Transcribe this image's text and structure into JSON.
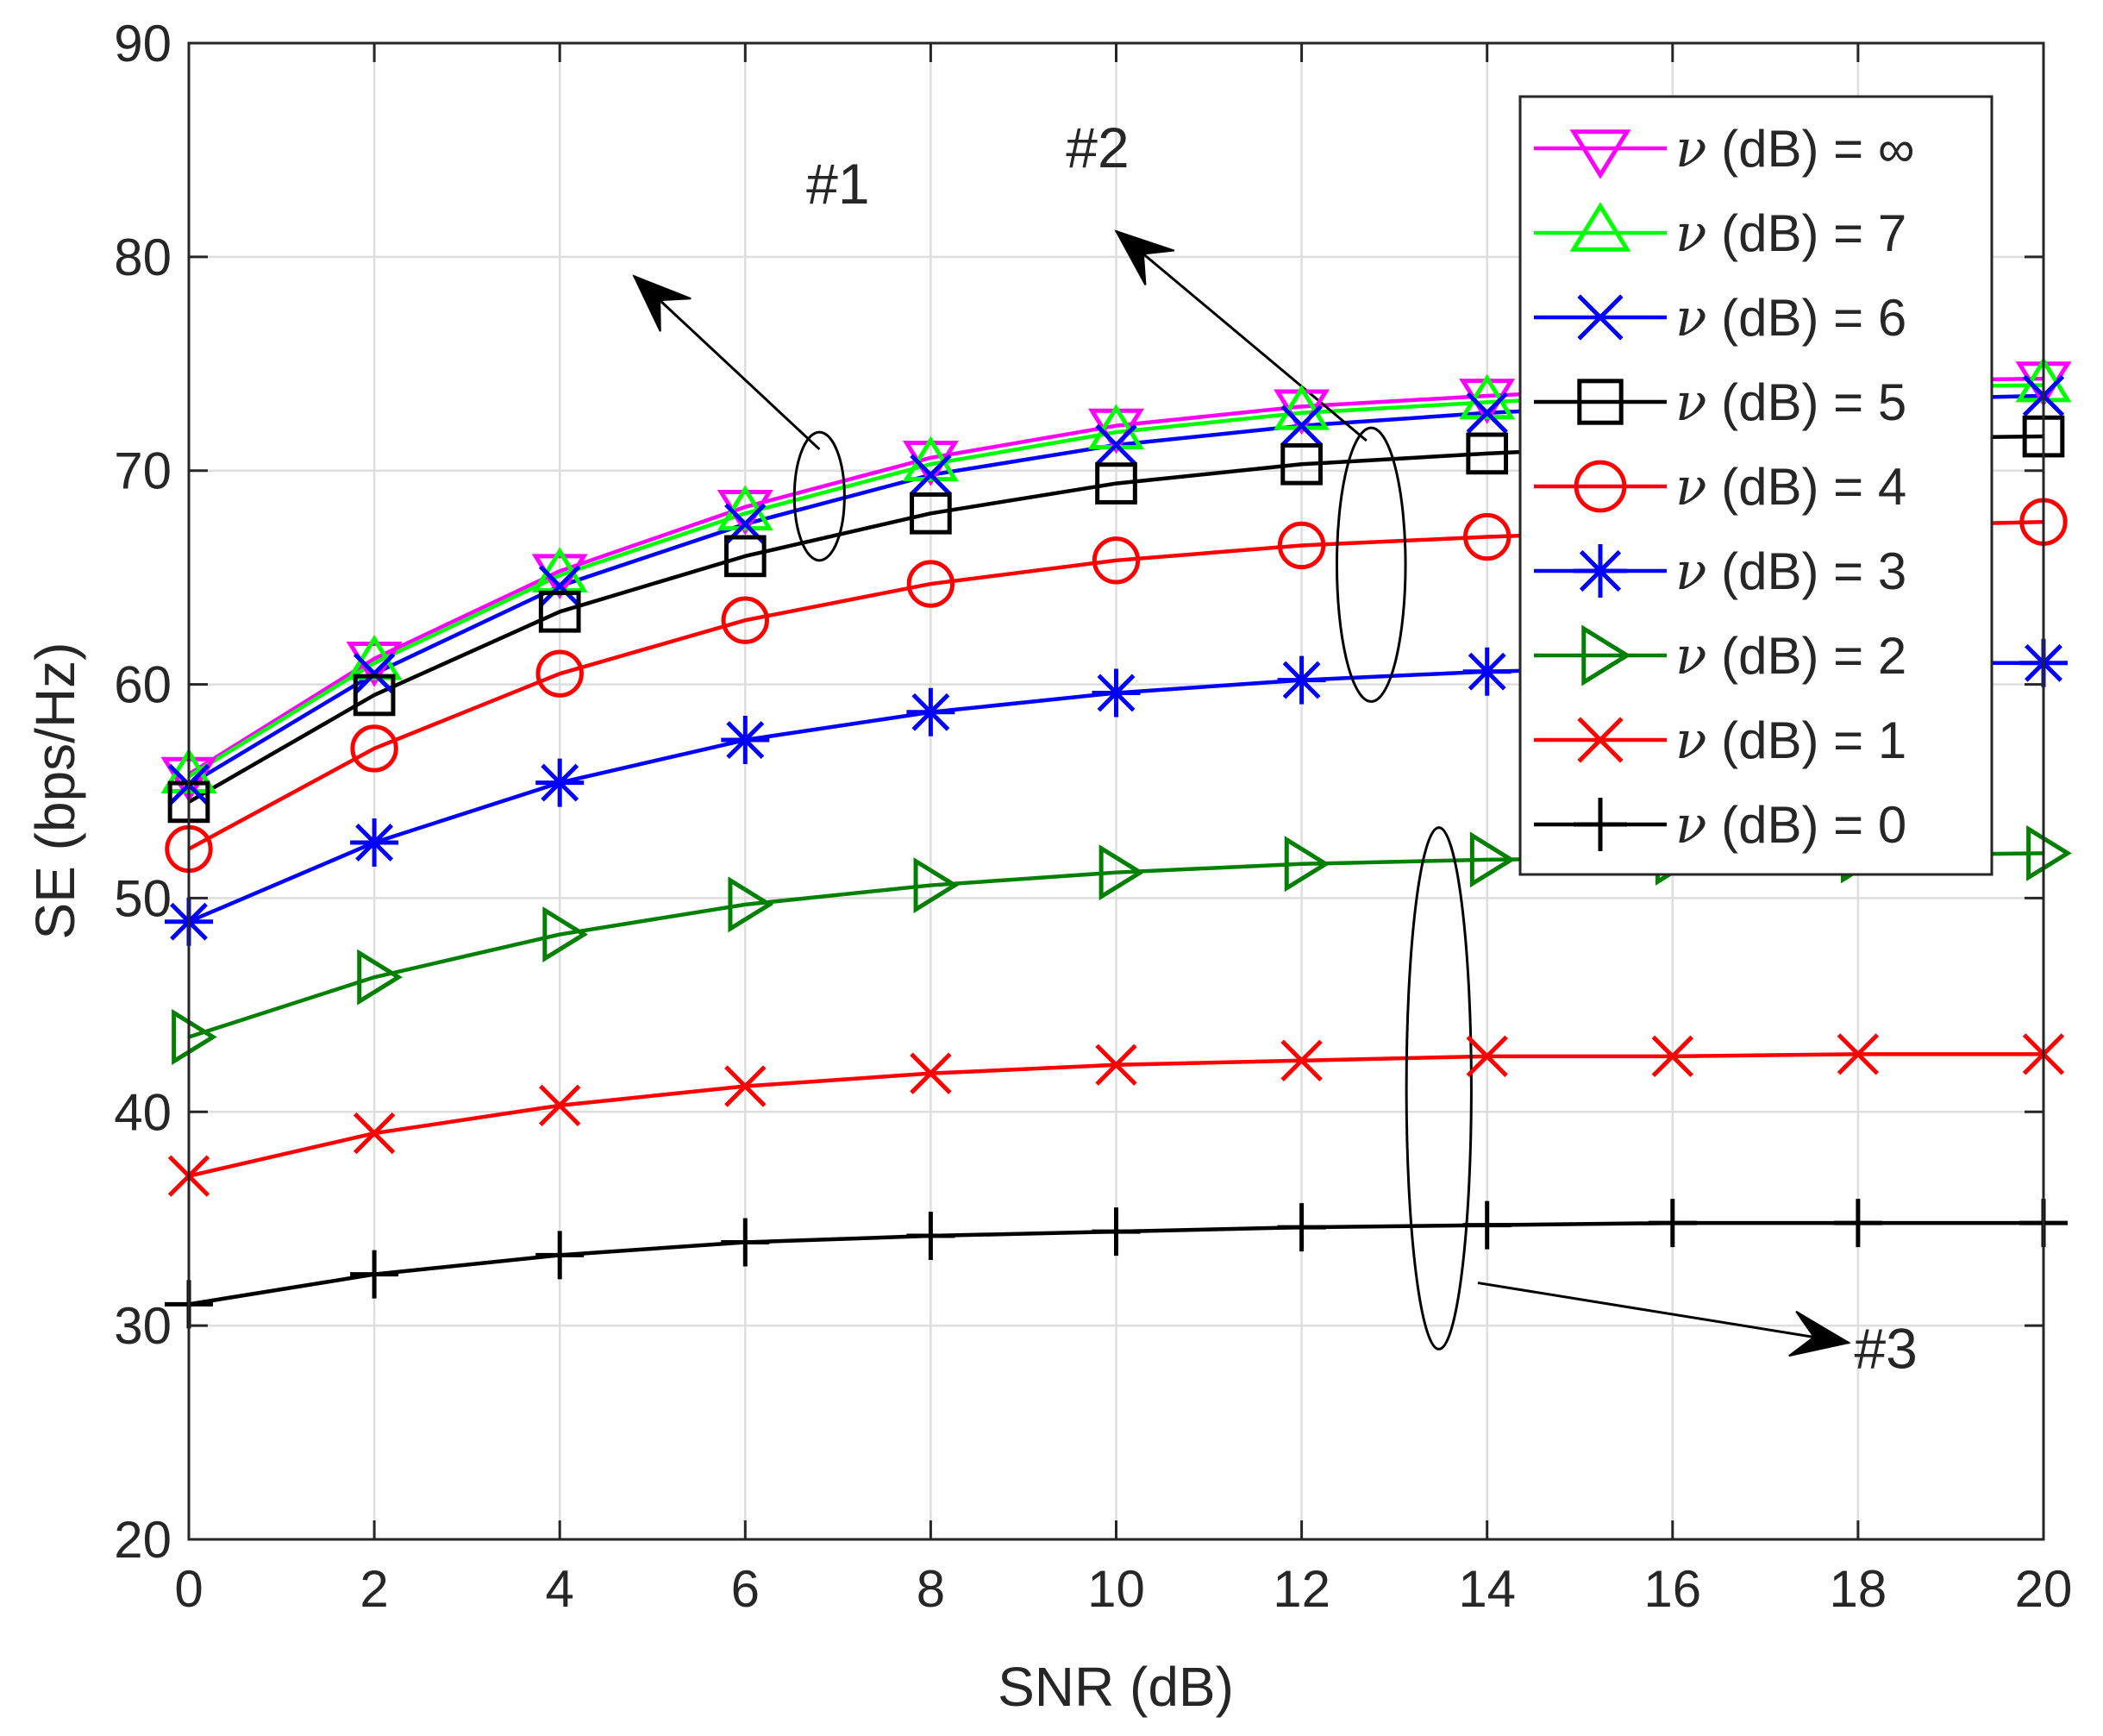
{
  "chart_data": {
    "type": "line",
    "title": "",
    "xlabel": "SNR (dB)",
    "ylabel": "SE (bps/Hz)",
    "xlim": [
      0,
      20
    ],
    "ylim": [
      20,
      90
    ],
    "grid": true,
    "legend_position": "top-right",
    "x": [
      0,
      2,
      4,
      6,
      8,
      10,
      12,
      14,
      16,
      18,
      20
    ],
    "x_tick_labels": [
      "0",
      "2",
      "4",
      "6",
      "8",
      "10",
      "12",
      "14",
      "16",
      "18",
      "20"
    ],
    "y_tick_labels": [
      "20",
      "30",
      "40",
      "50",
      "60",
      "70",
      "80",
      "90"
    ],
    "series": [
      {
        "name": "ν (dB) = ∞",
        "label_prefix": "ν",
        "label_suffix": " (dB) = ∞",
        "color": "#ff00ff",
        "marker": "triangle-down",
        "values": [
          55.8,
          61.2,
          65.3,
          68.3,
          70.6,
          72.1,
          73.0,
          73.5,
          73.9,
          74.2,
          74.3
        ]
      },
      {
        "name": "ν (dB) = 7",
        "label_prefix": "ν",
        "label_suffix": " (dB) = 7",
        "color": "#00ff00",
        "marker": "triangle-up",
        "values": [
          55.7,
          61.0,
          65.1,
          68.0,
          70.3,
          71.8,
          72.7,
          73.2,
          73.6,
          73.9,
          74.0
        ]
      },
      {
        "name": "ν (dB) = 6",
        "label_prefix": "ν",
        "label_suffix": " (dB) = 6",
        "color": "#0000ff",
        "marker": "x",
        "values": [
          55.3,
          60.5,
          64.6,
          67.5,
          69.8,
          71.2,
          72.1,
          72.7,
          73.1,
          73.3,
          73.5
        ]
      },
      {
        "name": "ν (dB) = 5",
        "label_prefix": "ν",
        "label_suffix": " (dB) = 5",
        "color": "#000000",
        "marker": "square",
        "values": [
          54.5,
          59.5,
          63.4,
          66.0,
          68.0,
          69.4,
          70.3,
          70.8,
          71.2,
          71.5,
          71.6
        ]
      },
      {
        "name": "ν (dB) = 4",
        "label_prefix": "ν",
        "label_suffix": " (dB) = 4",
        "color": "#ff0000",
        "marker": "circle",
        "values": [
          52.3,
          57.0,
          60.5,
          63.0,
          64.7,
          65.8,
          66.5,
          66.9,
          67.2,
          67.4,
          67.6
        ]
      },
      {
        "name": "ν (dB) = 3",
        "label_prefix": "ν",
        "label_suffix": " (dB) = 3",
        "color": "#0000ff",
        "marker": "asterisk",
        "values": [
          48.9,
          52.6,
          55.4,
          57.4,
          58.7,
          59.6,
          60.2,
          60.6,
          60.8,
          61.0,
          61.0
        ]
      },
      {
        "name": "ν (dB) = 2",
        "label_prefix": "ν",
        "label_suffix": " (dB) = 2",
        "color": "#008000",
        "marker": "triangle-right",
        "values": [
          43.5,
          46.3,
          48.3,
          49.7,
          50.6,
          51.2,
          51.6,
          51.8,
          51.9,
          52.0,
          52.1
        ]
      },
      {
        "name": "ν (dB) = 1",
        "label_prefix": "ν",
        "label_suffix": " (dB) = 1",
        "color": "#ff0000",
        "marker": "x",
        "values": [
          37.0,
          39.0,
          40.3,
          41.2,
          41.8,
          42.2,
          42.4,
          42.6,
          42.6,
          42.7,
          42.7
        ]
      },
      {
        "name": "ν (dB) = 0",
        "label_prefix": "ν",
        "label_suffix": " (dB) = 0",
        "color": "#000000",
        "marker": "plus",
        "values": [
          31.0,
          32.4,
          33.3,
          33.9,
          34.2,
          34.4,
          34.6,
          34.7,
          34.8,
          34.8,
          34.8
        ]
      }
    ],
    "annotations": [
      {
        "text": "#1",
        "text_xy": [
          7.0,
          82.5
        ],
        "arrow_from": [
          6.8,
          71.0
        ],
        "arrow_to": [
          4.8,
          79.1
        ],
        "ellipse_center": [
          6.8,
          68.8
        ],
        "ellipse_radii": [
          0.27,
          3.0
        ]
      },
      {
        "text": "#2",
        "text_xy": [
          9.8,
          84.2
        ],
        "arrow_from": [
          12.7,
          71.4
        ],
        "arrow_to": [
          10.0,
          81.2
        ],
        "ellipse_center": [
          12.75,
          65.6
        ],
        "ellipse_radii": [
          0.37,
          6.4
        ]
      },
      {
        "text": "#3",
        "text_xy": [
          18.3,
          28.0
        ],
        "arrow_from": [
          13.9,
          32.0
        ],
        "arrow_to": [
          17.9,
          29.2
        ],
        "ellipse_center": [
          13.48,
          41.1
        ],
        "ellipse_radii": [
          0.35,
          12.2
        ]
      }
    ]
  }
}
